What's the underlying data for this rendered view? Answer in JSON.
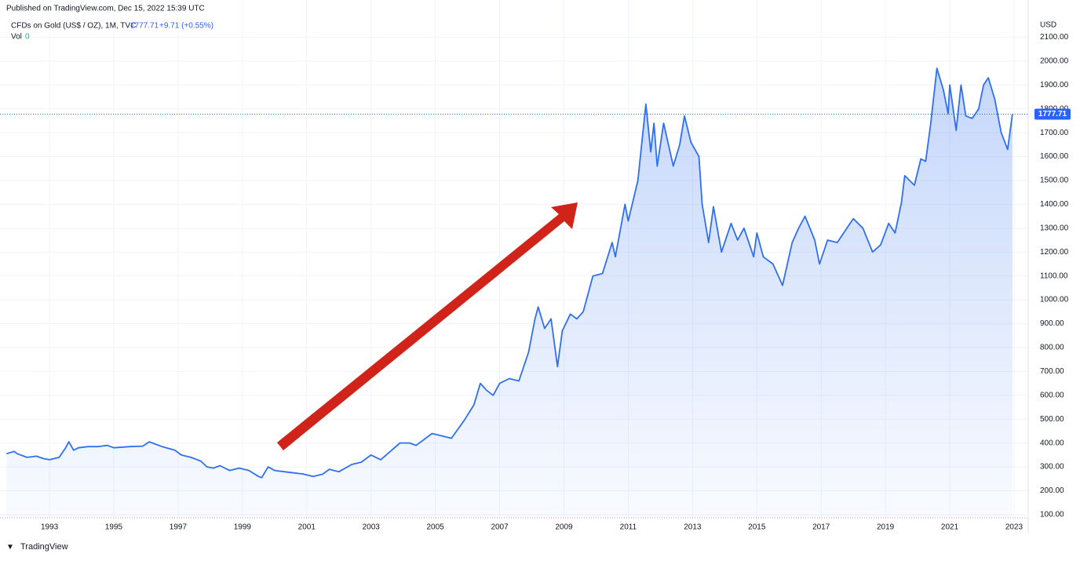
{
  "header": {
    "published": "Published on TradingView.com, Dec 15, 2022 15:39 UTC",
    "footer": "TradingView"
  },
  "chart_data": {
    "type": "area",
    "title": "CFDs on Gold (US$ / OZ), 1M, TVC",
    "last_price": {
      "value": 1777.71,
      "label": "1777.71"
    },
    "change": "+9.71 (+0.55%)",
    "volume_label": "Vol",
    "volume_value": 0,
    "currency": "USD",
    "color": "#2f6ff0",
    "grid": true,
    "xlim": [
      1991.46,
      2023.44
    ],
    "xticks": [
      1993,
      1995,
      1997,
      1999,
      2001,
      2003,
      2005,
      2007,
      2009,
      2011,
      2013,
      2015,
      2017,
      2019,
      2021,
      2023
    ],
    "ylim": [
      80,
      2200
    ],
    "yticks": [
      {
        "value": 100,
        "label": "100.00"
      },
      {
        "value": 200,
        "label": "200.00"
      },
      {
        "value": 300,
        "label": "300.00"
      },
      {
        "value": 400,
        "label": "400.00"
      },
      {
        "value": 500,
        "label": "500.00"
      },
      {
        "value": 600,
        "label": "600.00"
      },
      {
        "value": 700,
        "label": "700.00"
      },
      {
        "value": 800,
        "label": "800.00"
      },
      {
        "value": 900,
        "label": "900.00"
      },
      {
        "value": 1000,
        "label": "1000.00"
      },
      {
        "value": 1100,
        "label": "1100.00"
      },
      {
        "value": 1200,
        "label": "1200.00"
      },
      {
        "value": 1300,
        "label": "1300.00"
      },
      {
        "value": 1400,
        "label": "1400.00"
      },
      {
        "value": 1500,
        "label": "1500.00"
      },
      {
        "value": 1600,
        "label": "1600.00"
      },
      {
        "value": 1700,
        "label": "1700.00"
      },
      {
        "value": 1800,
        "label": "1800.00"
      },
      {
        "value": 1900,
        "label": "1900.00"
      },
      {
        "value": 2000,
        "label": "2000.00"
      },
      {
        "value": 2100,
        "label": "2100.00"
      }
    ],
    "x": [
      1991.66,
      1991.9,
      1992.0,
      1992.3,
      1992.6,
      1992.8,
      1993.0,
      1993.3,
      1993.5,
      1993.6,
      1993.75,
      1993.9,
      1994.2,
      1994.5,
      1994.8,
      1995.0,
      1995.5,
      1995.9,
      1996.1,
      1996.5,
      1996.9,
      1997.1,
      1997.4,
      1997.7,
      1997.9,
      1998.1,
      1998.3,
      1998.6,
      1998.9,
      1999.2,
      1999.5,
      1999.6,
      1999.8,
      2000.0,
      2000.3,
      2000.6,
      2000.9,
      2001.2,
      2001.5,
      2001.7,
      2002.0,
      2002.4,
      2002.7,
      2003.0,
      2003.3,
      2003.6,
      2003.9,
      2004.2,
      2004.4,
      2004.9,
      2005.2,
      2005.5,
      2005.9,
      2006.2,
      2006.4,
      2006.6,
      2006.8,
      2007.0,
      2007.3,
      2007.6,
      2007.9,
      2008.1,
      2008.2,
      2008.4,
      2008.6,
      2008.8,
      2008.95,
      2009.2,
      2009.4,
      2009.6,
      2009.9,
      2010.2,
      2010.5,
      2010.6,
      2010.9,
      2011.0,
      2011.3,
      2011.55,
      2011.7,
      2011.8,
      2011.9,
      2012.1,
      2012.4,
      2012.6,
      2012.75,
      2012.95,
      2013.2,
      2013.3,
      2013.5,
      2013.65,
      2013.9,
      2014.2,
      2014.4,
      2014.6,
      2014.9,
      2015.0,
      2015.2,
      2015.5,
      2015.8,
      2016.1,
      2016.3,
      2016.5,
      2016.8,
      2016.95,
      2017.2,
      2017.5,
      2017.8,
      2018.0,
      2018.3,
      2018.6,
      2018.85,
      2019.1,
      2019.3,
      2019.5,
      2019.6,
      2019.9,
      2020.1,
      2020.25,
      2020.4,
      2020.6,
      2020.8,
      2020.95,
      2021.0,
      2021.2,
      2021.35,
      2021.5,
      2021.7,
      2021.9,
      2022.05,
      2022.2,
      2022.4,
      2022.6,
      2022.8,
      2022.95
    ],
    "values": [
      355,
      365,
      355,
      340,
      345,
      335,
      330,
      340,
      380,
      405,
      370,
      380,
      385,
      385,
      390,
      380,
      385,
      387,
      405,
      385,
      370,
      350,
      340,
      325,
      300,
      295,
      305,
      285,
      295,
      285,
      260,
      255,
      300,
      285,
      280,
      275,
      270,
      260,
      270,
      290,
      280,
      310,
      320,
      350,
      330,
      365,
      400,
      400,
      390,
      440,
      430,
      420,
      495,
      560,
      650,
      620,
      600,
      650,
      670,
      660,
      780,
      920,
      970,
      880,
      920,
      720,
      870,
      940,
      920,
      950,
      1100,
      1110,
      1240,
      1180,
      1400,
      1330,
      1500,
      1820,
      1620,
      1740,
      1560,
      1740,
      1560,
      1650,
      1770,
      1660,
      1600,
      1400,
      1240,
      1390,
      1200,
      1320,
      1250,
      1300,
      1180,
      1280,
      1180,
      1150,
      1060,
      1240,
      1300,
      1350,
      1250,
      1150,
      1250,
      1240,
      1300,
      1340,
      1300,
      1200,
      1230,
      1320,
      1280,
      1410,
      1520,
      1480,
      1590,
      1580,
      1730,
      1970,
      1880,
      1780,
      1900,
      1710,
      1900,
      1770,
      1760,
      1800,
      1900,
      1930,
      1840,
      1700,
      1630,
      1777.71
    ]
  }
}
